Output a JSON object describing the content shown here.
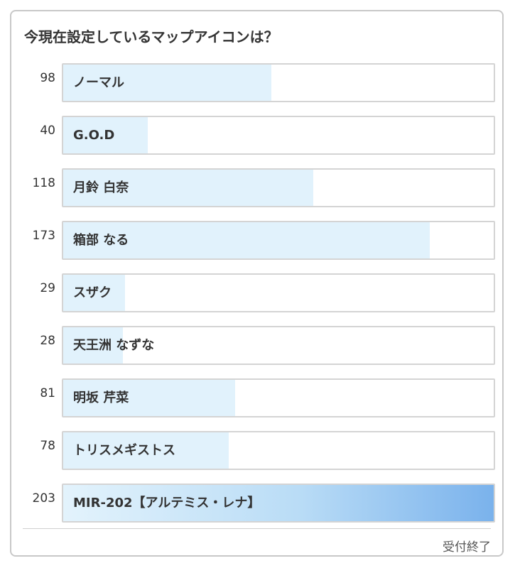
{
  "poll": {
    "question": "今現在設定しているマップアイコンは？",
    "max_votes": 203,
    "options": [
      {
        "label": "ノーマル",
        "votes": 98
      },
      {
        "label": "G.O.D",
        "votes": 40
      },
      {
        "label": "月鈴 白奈",
        "votes": 118
      },
      {
        "label": "箱部 なる",
        "votes": 173
      },
      {
        "label": "スザク",
        "votes": 29
      },
      {
        "label": "天王洲 なずな",
        "votes": 28
      },
      {
        "label": "明坂 芹菜",
        "votes": 81
      },
      {
        "label": "トリスメギストス",
        "votes": 78
      },
      {
        "label": "MIR-202【アルテミス・レナ】",
        "votes": 203
      }
    ],
    "status": "受付終了"
  },
  "colors": {
    "bar_fill": "#e1f2fc",
    "leader_fill_end": "#7ab2ec",
    "bar_border": "#d4d4d4",
    "text": "#333333"
  }
}
